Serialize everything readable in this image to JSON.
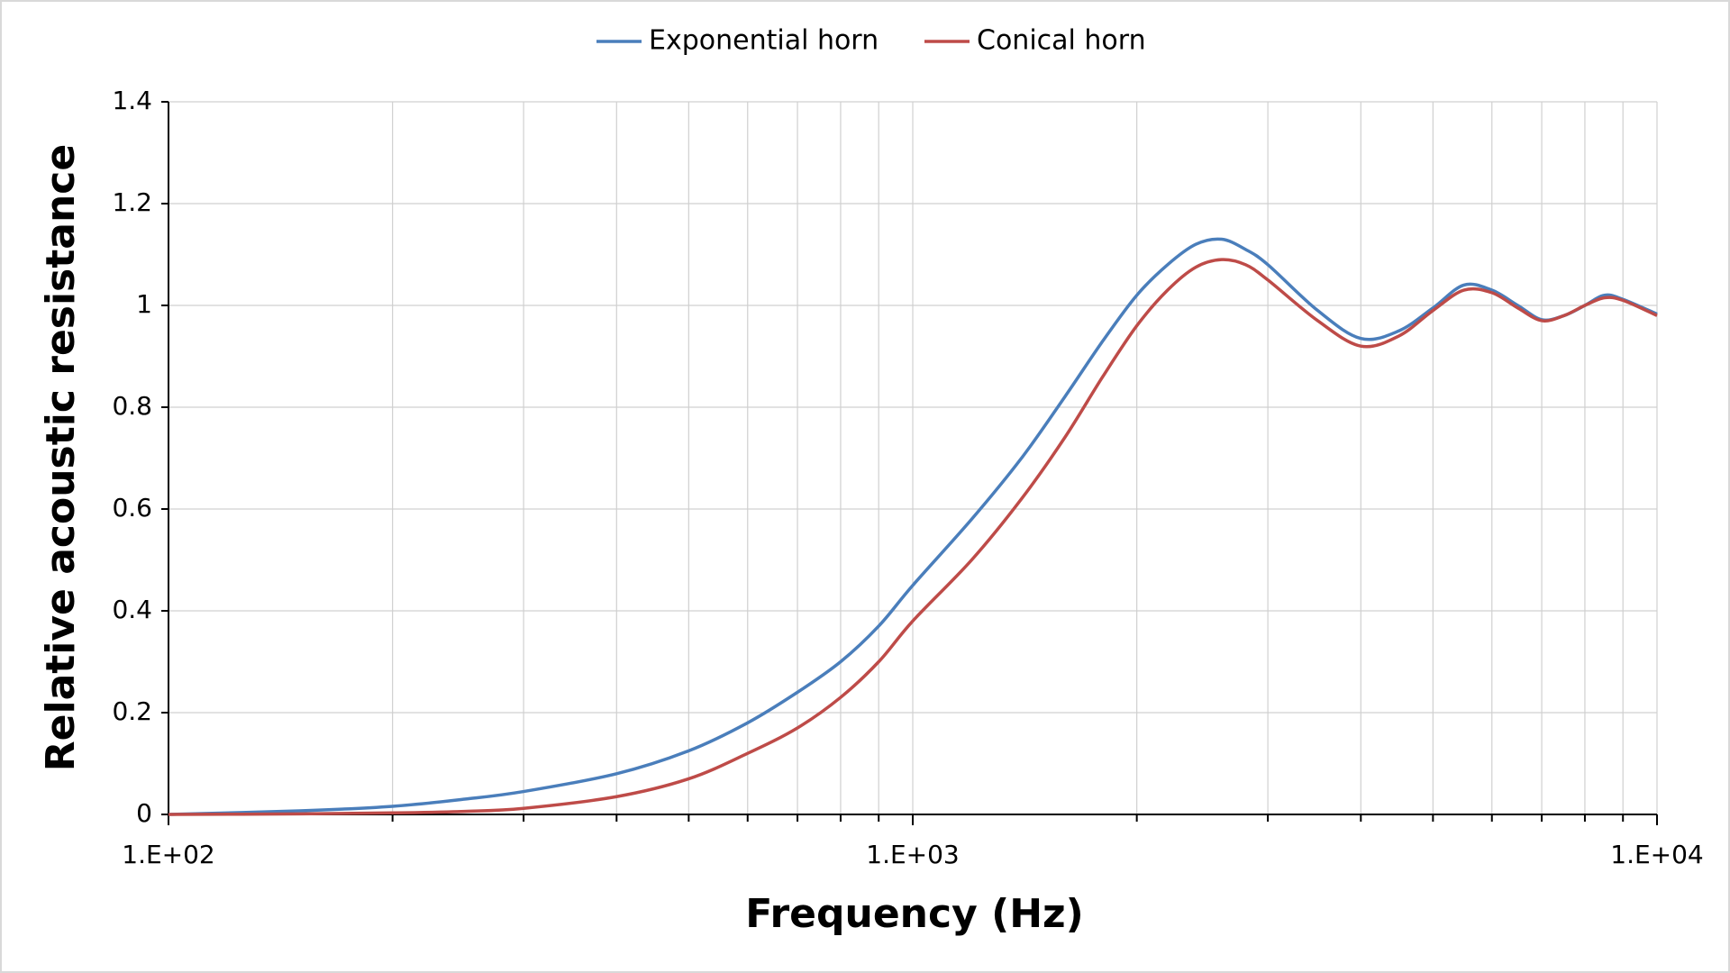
{
  "chart_data": {
    "type": "line",
    "x_label": "Frequency (Hz)",
    "y_label": "Relative acoustic resistance",
    "x_scale": "log",
    "x": [
      100,
      150,
      200,
      250,
      300,
      400,
      500,
      600,
      700,
      800,
      900,
      1000,
      1200,
      1400,
      1600,
      1800,
      2000,
      2200,
      2400,
      2600,
      2800,
      3000,
      3500,
      4000,
      4500,
      5000,
      5500,
      6000,
      6500,
      7000,
      7500,
      8000,
      8500,
      9000,
      10000
    ],
    "series": [
      {
        "name": "Exponential horn",
        "color": "#4a7ebb",
        "values": [
          0,
          0.007,
          0.016,
          0.03,
          0.045,
          0.08,
          0.125,
          0.18,
          0.24,
          0.3,
          0.37,
          0.45,
          0.58,
          0.7,
          0.82,
          0.93,
          1.02,
          1.08,
          1.12,
          1.13,
          1.11,
          1.08,
          0.99,
          0.935,
          0.95,
          0.995,
          1.04,
          1.03,
          1.0,
          0.972,
          0.98,
          1.0,
          1.02,
          1.012,
          0.983
        ]
      },
      {
        "name": "Conical horn",
        "color": "#be4b48",
        "values": [
          0,
          0.001,
          0.003,
          0.006,
          0.012,
          0.035,
          0.07,
          0.12,
          0.17,
          0.23,
          0.3,
          0.38,
          0.5,
          0.62,
          0.74,
          0.86,
          0.96,
          1.03,
          1.075,
          1.09,
          1.08,
          1.05,
          0.97,
          0.92,
          0.94,
          0.99,
          1.03,
          1.025,
          0.995,
          0.97,
          0.98,
          1.0,
          1.015,
          1.01,
          0.98
        ]
      }
    ],
    "xlim": [
      100,
      10000
    ],
    "xticks": [
      {
        "value": 100,
        "label": "1.E+02"
      },
      {
        "value": 1000,
        "label": "1.E+03"
      },
      {
        "value": 10000,
        "label": "1.E+04"
      }
    ],
    "xminorticks": [
      200,
      300,
      400,
      500,
      600,
      700,
      800,
      900,
      2000,
      3000,
      4000,
      5000,
      6000,
      7000,
      8000,
      9000
    ],
    "ylim": [
      0,
      1.4
    ],
    "yticks": [
      0,
      0.2,
      0.4,
      0.6,
      0.8,
      1,
      1.2,
      1.4
    ],
    "grid": true,
    "legend": "top"
  }
}
